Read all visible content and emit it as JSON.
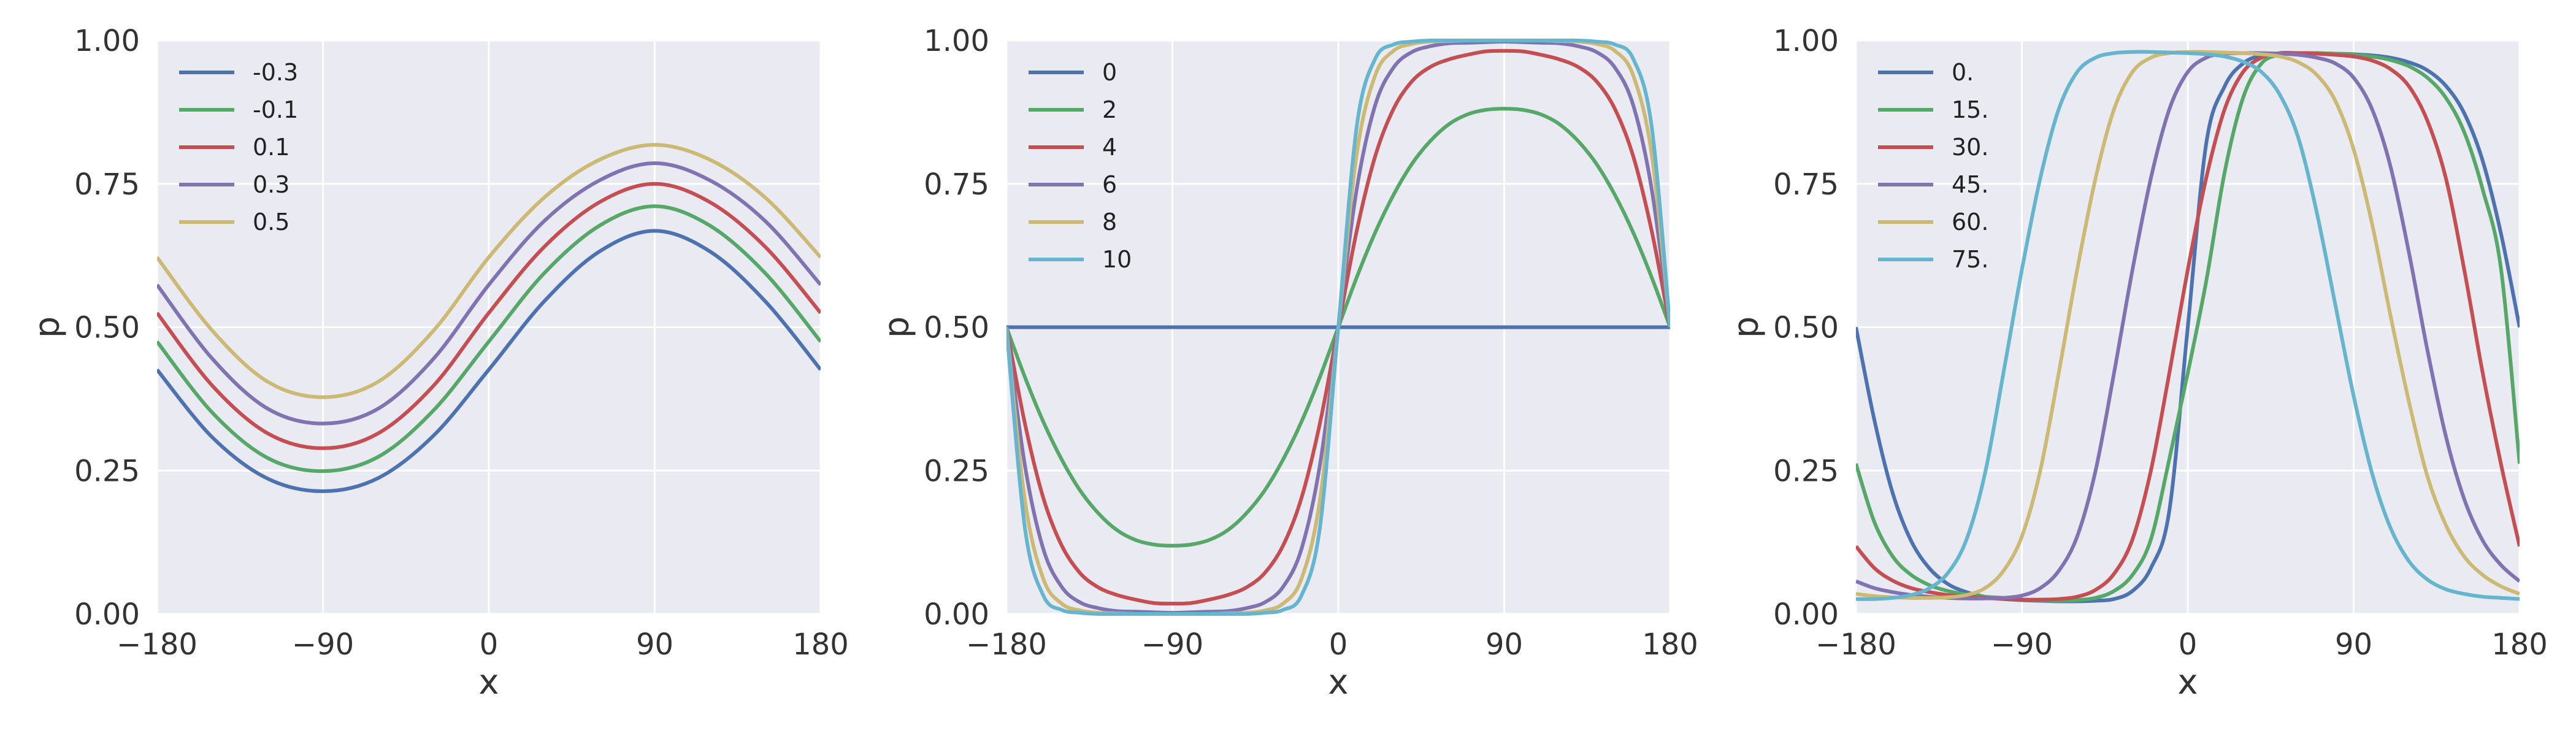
{
  "chart_data": [
    {
      "type": "line",
      "xlabel": "x",
      "ylabel": "p",
      "xlim": [
        -180,
        180
      ],
      "ylim": [
        0,
        1
      ],
      "xticks": [
        -180,
        -90,
        0,
        90,
        180
      ],
      "xtick_labels": [
        "−180",
        "−90",
        "0",
        "90",
        "180"
      ],
      "yticks": [
        0,
        0.25,
        0.5,
        0.75,
        1
      ],
      "ytick_labels": [
        "0.00",
        "0.25",
        "0.50",
        "0.75",
        "1.00"
      ],
      "grid": true,
      "legend_position": "top-left",
      "x": [
        -180,
        -150,
        -120,
        -90,
        -60,
        -30,
        0,
        30,
        60,
        90,
        120,
        150,
        180
      ],
      "series": [
        {
          "name": "-0.3",
          "color": "#4c72b0",
          "values": [
            0.426,
            0.308,
            0.236,
            0.214,
            0.237,
            0.311,
            0.426,
            0.545,
            0.632,
            0.668,
            0.632,
            0.545,
            0.426
          ]
        },
        {
          "name": "-0.1",
          "color": "#55a868",
          "values": [
            0.475,
            0.351,
            0.272,
            0.249,
            0.274,
            0.355,
            0.475,
            0.594,
            0.677,
            0.711,
            0.677,
            0.594,
            0.475
          ]
        },
        {
          "name": "0.1",
          "color": "#c44e52",
          "values": [
            0.525,
            0.398,
            0.315,
            0.289,
            0.315,
            0.398,
            0.525,
            0.64,
            0.718,
            0.75,
            0.718,
            0.64,
            0.525
          ]
        },
        {
          "name": "0.3",
          "color": "#8172b2",
          "values": [
            0.574,
            0.445,
            0.358,
            0.332,
            0.358,
            0.445,
            0.574,
            0.685,
            0.756,
            0.786,
            0.756,
            0.685,
            0.574
          ]
        },
        {
          "name": "0.5",
          "color": "#ccb974",
          "values": [
            0.622,
            0.494,
            0.405,
            0.378,
            0.405,
            0.494,
            0.622,
            0.726,
            0.792,
            0.818,
            0.792,
            0.726,
            0.622
          ]
        }
      ]
    },
    {
      "type": "line",
      "xlabel": "x",
      "ylabel": "p",
      "xlim": [
        -180,
        180
      ],
      "ylim": [
        0,
        1
      ],
      "xticks": [
        -180,
        -90,
        0,
        90,
        180
      ],
      "xtick_labels": [
        "−180",
        "−90",
        "0",
        "90",
        "180"
      ],
      "yticks": [
        0,
        0.25,
        0.5,
        0.75,
        1
      ],
      "ytick_labels": [
        "0.00",
        "0.25",
        "0.50",
        "0.75",
        "1.00"
      ],
      "grid": true,
      "legend_position": "top-left",
      "x": [
        -180,
        -170,
        -160,
        -150,
        -140,
        -130,
        -120,
        -110,
        -100,
        -90,
        -80,
        -70,
        -60,
        -50,
        -40,
        -30,
        -20,
        -10,
        0,
        10,
        20,
        30,
        40,
        50,
        60,
        70,
        80,
        90,
        100,
        110,
        120,
        130,
        140,
        150,
        160,
        170,
        180
      ],
      "series": [
        {
          "name": "0",
          "color": "#4c72b0",
          "values": [
            0.5,
            0.5,
            0.5,
            0.5,
            0.5,
            0.5,
            0.5,
            0.5,
            0.5,
            0.5,
            0.5,
            0.5,
            0.5,
            0.5,
            0.5,
            0.5,
            0.5,
            0.5,
            0.5,
            0.5,
            0.5,
            0.5,
            0.5,
            0.5,
            0.5,
            0.5,
            0.5,
            0.5,
            0.5,
            0.5,
            0.5,
            0.5,
            0.5,
            0.5,
            0.5,
            0.5,
            0.5
          ]
        },
        {
          "name": "2",
          "color": "#55a868",
          "values": [
            0.5,
            0.413,
            0.335,
            0.269,
            0.215,
            0.175,
            0.146,
            0.129,
            0.121,
            0.119,
            0.121,
            0.129,
            0.146,
            0.175,
            0.215,
            0.269,
            0.335,
            0.413,
            0.5,
            0.587,
            0.665,
            0.731,
            0.785,
            0.825,
            0.854,
            0.871,
            0.879,
            0.881,
            0.879,
            0.871,
            0.854,
            0.825,
            0.785,
            0.731,
            0.665,
            0.587,
            0.5
          ]
        },
        {
          "name": "4",
          "color": "#c44e52",
          "values": [
            0.5,
            0.332,
            0.202,
            0.119,
            0.071,
            0.046,
            0.033,
            0.025,
            0.019,
            0.018,
            0.019,
            0.025,
            0.033,
            0.046,
            0.071,
            0.119,
            0.202,
            0.332,
            0.5,
            0.668,
            0.798,
            0.881,
            0.929,
            0.954,
            0.967,
            0.975,
            0.981,
            0.982,
            0.981,
            0.975,
            0.967,
            0.954,
            0.929,
            0.881,
            0.798,
            0.668,
            0.5
          ]
        },
        {
          "name": "6",
          "color": "#8172b2",
          "values": [
            0.5,
            0.259,
            0.113,
            0.047,
            0.02,
            0.01,
            0.005,
            0.004,
            0.003,
            0.002,
            0.003,
            0.004,
            0.005,
            0.01,
            0.02,
            0.047,
            0.113,
            0.259,
            0.5,
            0.741,
            0.887,
            0.953,
            0.98,
            0.99,
            0.995,
            0.996,
            0.997,
            0.998,
            0.997,
            0.996,
            0.995,
            0.99,
            0.98,
            0.953,
            0.887,
            0.741,
            0.5
          ]
        },
        {
          "name": "8",
          "color": "#ccb974",
          "values": [
            0.5,
            0.198,
            0.061,
            0.018,
            0.006,
            0.002,
            0.001,
            0.0,
            0.0,
            0.0,
            0.0,
            0.0,
            0.001,
            0.002,
            0.006,
            0.018,
            0.061,
            0.198,
            0.5,
            0.802,
            0.939,
            0.982,
            0.994,
            0.998,
            0.999,
            1.0,
            1.0,
            1.0,
            1.0,
            1.0,
            0.999,
            0.998,
            0.994,
            0.982,
            0.939,
            0.802,
            0.5
          ]
        },
        {
          "name": "10",
          "color": "#64b5cd",
          "values": [
            0.5,
            0.15,
            0.032,
            0.007,
            0.002,
            0.0,
            0.0,
            0.0,
            0.0,
            0.0,
            0.0,
            0.0,
            0.0,
            0.0,
            0.002,
            0.007,
            0.032,
            0.15,
            0.5,
            0.85,
            0.968,
            0.993,
            0.998,
            1.0,
            1.0,
            1.0,
            1.0,
            1.0,
            1.0,
            1.0,
            1.0,
            1.0,
            0.998,
            0.993,
            0.968,
            0.85,
            0.5
          ]
        }
      ]
    },
    {
      "type": "line",
      "xlabel": "x",
      "ylabel": "p",
      "xlim": [
        -180,
        180
      ],
      "ylim": [
        0,
        1
      ],
      "xticks": [
        -180,
        -90,
        0,
        90,
        180
      ],
      "xtick_labels": [
        "−180",
        "−90",
        "0",
        "90",
        "180"
      ],
      "yticks": [
        0,
        0.25,
        0.5,
        0.75,
        1
      ],
      "ytick_labels": [
        "0.00",
        "0.25",
        "0.50",
        "0.75",
        "1.00"
      ],
      "grid": true,
      "legend_position": "top-left",
      "x": [
        -180,
        -170,
        -160,
        -150,
        -140,
        -130,
        -120,
        -110,
        -100,
        -90,
        -80,
        -70,
        -60,
        -50,
        -40,
        -30,
        -20,
        -10,
        0,
        10,
        20,
        30,
        40,
        50,
        60,
        70,
        80,
        90,
        100,
        110,
        120,
        130,
        140,
        150,
        160,
        170,
        180
      ],
      "series": [
        {
          "name": "0.",
          "color": "#4c72b0",
          "values": [
            0.5,
            0.338,
            0.21,
            0.127,
            0.079,
            0.052,
            0.038,
            0.03,
            0.026,
            0.024,
            0.023,
            0.022,
            0.022,
            0.023,
            0.026,
            0.04,
            0.08,
            0.18,
            0.5,
            0.82,
            0.92,
            0.96,
            0.974,
            0.977,
            0.978,
            0.978,
            0.977,
            0.976,
            0.974,
            0.97,
            0.962,
            0.948,
            0.921,
            0.873,
            0.79,
            0.662,
            0.5
          ]
        },
        {
          "name": "15.",
          "color": "#55a868",
          "values": [
            0.262,
            0.16,
            0.1,
            0.068,
            0.05,
            0.04,
            0.034,
            0.03,
            0.028,
            0.025,
            0.024,
            0.023,
            0.024,
            0.028,
            0.04,
            0.068,
            0.13,
            0.27,
            0.42,
            0.58,
            0.77,
            0.9,
            0.96,
            0.975,
            0.978,
            0.978,
            0.977,
            0.975,
            0.972,
            0.966,
            0.955,
            0.935,
            0.9,
            0.84,
            0.74,
            0.6,
            0.262
          ]
        },
        {
          "name": "30.",
          "color": "#c44e52",
          "values": [
            0.118,
            0.08,
            0.058,
            0.045,
            0.038,
            0.033,
            0.03,
            0.028,
            0.026,
            0.025,
            0.025,
            0.026,
            0.03,
            0.042,
            0.07,
            0.13,
            0.25,
            0.42,
            0.6,
            0.76,
            0.88,
            0.945,
            0.97,
            0.978,
            0.978,
            0.977,
            0.975,
            0.972,
            0.965,
            0.95,
            0.92,
            0.86,
            0.76,
            0.6,
            0.42,
            0.26,
            0.118
          ]
        },
        {
          "name": "45.",
          "color": "#8172b2",
          "values": [
            0.057,
            0.045,
            0.038,
            0.033,
            0.03,
            0.028,
            0.027,
            0.027,
            0.028,
            0.032,
            0.045,
            0.075,
            0.135,
            0.25,
            0.42,
            0.6,
            0.76,
            0.88,
            0.945,
            0.97,
            0.977,
            0.978,
            0.978,
            0.977,
            0.975,
            0.97,
            0.96,
            0.935,
            0.88,
            0.78,
            0.63,
            0.46,
            0.31,
            0.2,
            0.128,
            0.085,
            0.057
          ]
        },
        {
          "name": "60.",
          "color": "#ccb974",
          "values": [
            0.035,
            0.031,
            0.029,
            0.028,
            0.028,
            0.029,
            0.033,
            0.045,
            0.075,
            0.135,
            0.25,
            0.42,
            0.6,
            0.76,
            0.88,
            0.945,
            0.97,
            0.978,
            0.98,
            0.98,
            0.979,
            0.978,
            0.976,
            0.972,
            0.962,
            0.94,
            0.895,
            0.81,
            0.68,
            0.52,
            0.37,
            0.24,
            0.155,
            0.1,
            0.068,
            0.048,
            0.035
          ]
        },
        {
          "name": "75.",
          "color": "#64b5cd",
          "values": [
            0.026,
            0.026,
            0.028,
            0.033,
            0.045,
            0.072,
            0.13,
            0.245,
            0.42,
            0.6,
            0.76,
            0.88,
            0.945,
            0.97,
            0.978,
            0.98,
            0.98,
            0.979,
            0.978,
            0.976,
            0.972,
            0.963,
            0.945,
            0.905,
            0.83,
            0.7,
            0.54,
            0.38,
            0.245,
            0.15,
            0.092,
            0.06,
            0.043,
            0.035,
            0.03,
            0.028,
            0.026
          ]
        }
      ]
    }
  ]
}
